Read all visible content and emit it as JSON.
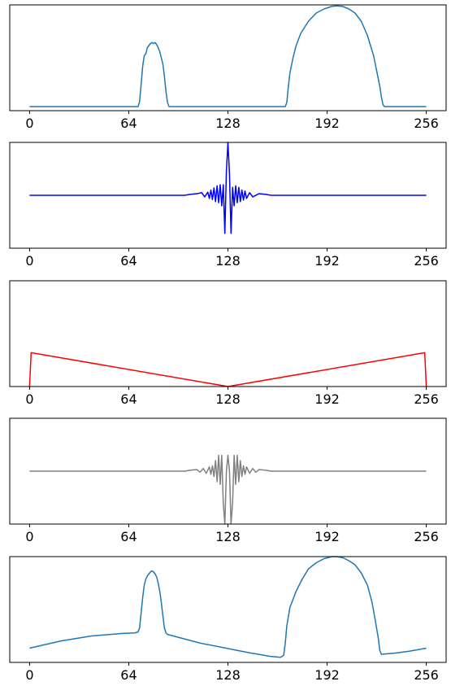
{
  "chart_data": [
    {
      "type": "line",
      "x_ticks": [
        0,
        64,
        128,
        192,
        256
      ],
      "xlim": [
        -12.8,
        268.8
      ],
      "ylim": [
        -0.04,
        1.0
      ],
      "grid": false,
      "color": "#1f77b4",
      "series": [
        {
          "points": [
            [
              0,
              0
            ],
            [
              70,
              0
            ],
            [
              71,
              0.05
            ],
            [
              72,
              0.22
            ],
            [
              73,
              0.4
            ],
            [
              74,
              0.5
            ],
            [
              75,
              0.52
            ],
            [
              76,
              0.58
            ],
            [
              77,
              0.6
            ],
            [
              78,
              0.62
            ],
            [
              79,
              0.63
            ],
            [
              80,
              0.62
            ],
            [
              81,
              0.63
            ],
            [
              82,
              0.61
            ],
            [
              83,
              0.58
            ],
            [
              84,
              0.54
            ],
            [
              85,
              0.48
            ],
            [
              86,
              0.42
            ],
            [
              87,
              0.3
            ],
            [
              88,
              0.15
            ],
            [
              89,
              0.04
            ],
            [
              90,
              0
            ],
            [
              165,
              0
            ],
            [
              166,
              0.04
            ],
            [
              167,
              0.2
            ],
            [
              168,
              0.33
            ],
            [
              170,
              0.48
            ],
            [
              172,
              0.6
            ],
            [
              175,
              0.72
            ],
            [
              180,
              0.84
            ],
            [
              185,
              0.92
            ],
            [
              190,
              0.96
            ],
            [
              195,
              0.985
            ],
            [
              198,
              0.99
            ],
            [
              202,
              0.985
            ],
            [
              206,
              0.96
            ],
            [
              210,
              0.92
            ],
            [
              214,
              0.84
            ],
            [
              218,
              0.7
            ],
            [
              222,
              0.5
            ],
            [
              224,
              0.35
            ],
            [
              226,
              0.2
            ],
            [
              227,
              0.1
            ],
            [
              228,
              0.02
            ],
            [
              229,
              0
            ],
            [
              256,
              0
            ]
          ]
        }
      ]
    },
    {
      "type": "line",
      "x_ticks": [
        0,
        64,
        128,
        192,
        256
      ],
      "xlim": [
        -12.8,
        268.8
      ],
      "ylim": [
        -1.0,
        1.0
      ],
      "grid": false,
      "color": "#0000ff",
      "series": [
        {
          "points": [
            [
              0,
              0
            ],
            [
              100,
              0
            ],
            [
              104,
              0.02
            ],
            [
              108,
              0.03
            ],
            [
              111,
              0.05
            ],
            [
              113,
              -0.03
            ],
            [
              115,
              0.06
            ],
            [
              116,
              -0.06
            ],
            [
              117,
              0.1
            ],
            [
              118,
              -0.08
            ],
            [
              119,
              0.14
            ],
            [
              120,
              -0.12
            ],
            [
              121,
              0.18
            ],
            [
              122,
              -0.14
            ],
            [
              123,
              0.2
            ],
            [
              124,
              -0.2
            ],
            [
              125,
              0.2
            ],
            [
              126,
              -0.72
            ],
            [
              127,
              0.45
            ],
            [
              128,
              1.0
            ],
            [
              129,
              0.4
            ],
            [
              130,
              -0.72
            ],
            [
              131,
              0.15
            ],
            [
              132,
              -0.2
            ],
            [
              133,
              0.18
            ],
            [
              134,
              -0.14
            ],
            [
              135,
              0.15
            ],
            [
              136,
              -0.12
            ],
            [
              137,
              0.1
            ],
            [
              138,
              -0.09
            ],
            [
              139,
              0.08
            ],
            [
              140,
              -0.06
            ],
            [
              142,
              0.05
            ],
            [
              144,
              -0.03
            ],
            [
              148,
              0.03
            ],
            [
              152,
              0.02
            ],
            [
              156,
              0
            ],
            [
              256,
              0
            ]
          ]
        }
      ]
    },
    {
      "type": "line",
      "x_ticks": [
        0,
        64,
        128,
        192,
        256
      ],
      "xlim": [
        -12.8,
        268.8
      ],
      "ylim": [
        0,
        1.0
      ],
      "grid": false,
      "color": "#ff0000",
      "series": [
        {
          "points": [
            [
              0,
              0
            ],
            [
              1,
              0.32
            ],
            [
              128,
              0
            ],
            [
              255,
              0.32
            ],
            [
              256,
              0
            ]
          ]
        }
      ]
    },
    {
      "type": "line",
      "x_ticks": [
        0,
        64,
        128,
        192,
        256
      ],
      "xlim": [
        -12.8,
        268.8
      ],
      "ylim": [
        -1.0,
        1.0
      ],
      "grid": false,
      "color": "#808080",
      "series": [
        {
          "points": [
            [
              0,
              0
            ],
            [
              100,
              0
            ],
            [
              104,
              0.02
            ],
            [
              108,
              0.03
            ],
            [
              110,
              -0.02
            ],
            [
              112,
              0.05
            ],
            [
              114,
              -0.04
            ],
            [
              116,
              0.08
            ],
            [
              117,
              -0.06
            ],
            [
              118,
              0.1
            ],
            [
              119,
              -0.1
            ],
            [
              120,
              0.2
            ],
            [
              121,
              -0.2
            ],
            [
              122,
              0.3
            ],
            [
              123,
              -0.25
            ],
            [
              124,
              0.3
            ],
            [
              125,
              -0.6
            ],
            [
              126,
              -1.0
            ],
            [
              127,
              0
            ],
            [
              128,
              0.3
            ],
            [
              129,
              0
            ],
            [
              130,
              -1.0
            ],
            [
              131,
              -0.6
            ],
            [
              132,
              0.3
            ],
            [
              133,
              -0.25
            ],
            [
              134,
              0.3
            ],
            [
              135,
              -0.2
            ],
            [
              136,
              0.2
            ],
            [
              137,
              -0.1
            ],
            [
              138,
              0.1
            ],
            [
              139,
              -0.06
            ],
            [
              140,
              0.08
            ],
            [
              142,
              -0.04
            ],
            [
              144,
              0.05
            ],
            [
              146,
              -0.02
            ],
            [
              148,
              0.03
            ],
            [
              152,
              0.02
            ],
            [
              156,
              0
            ],
            [
              256,
              0
            ]
          ]
        }
      ]
    },
    {
      "type": "line",
      "x_ticks": [
        0,
        64,
        128,
        192,
        256
      ],
      "xlim": [
        -12.8,
        268.8
      ],
      "ylim": [
        -0.04,
        1.0
      ],
      "grid": false,
      "color": "#1f77b4",
      "series": [
        {
          "points": [
            [
              0,
              0.1
            ],
            [
              20,
              0.17
            ],
            [
              40,
              0.22
            ],
            [
              60,
              0.245
            ],
            [
              68,
              0.25
            ],
            [
              70,
              0.26
            ],
            [
              71,
              0.3
            ],
            [
              72,
              0.45
            ],
            [
              73,
              0.6
            ],
            [
              74,
              0.72
            ],
            [
              75,
              0.78
            ],
            [
              76,
              0.81
            ],
            [
              77,
              0.83
            ],
            [
              78,
              0.85
            ],
            [
              79,
              0.86
            ],
            [
              80,
              0.85
            ],
            [
              81,
              0.83
            ],
            [
              82,
              0.8
            ],
            [
              83,
              0.74
            ],
            [
              84,
              0.66
            ],
            [
              85,
              0.55
            ],
            [
              86,
              0.42
            ],
            [
              87,
              0.3
            ],
            [
              88,
              0.25
            ],
            [
              89,
              0.235
            ],
            [
              110,
              0.15
            ],
            [
              140,
              0.06
            ],
            [
              155,
              0.02
            ],
            [
              162,
              0.01
            ],
            [
              164,
              0.03
            ],
            [
              165,
              0.15
            ],
            [
              166,
              0.32
            ],
            [
              168,
              0.5
            ],
            [
              172,
              0.66
            ],
            [
              176,
              0.78
            ],
            [
              180,
              0.88
            ],
            [
              185,
              0.94
            ],
            [
              190,
              0.98
            ],
            [
              195,
              1.0
            ],
            [
              198,
              1.0
            ],
            [
              202,
              0.99
            ],
            [
              206,
              0.96
            ],
            [
              210,
              0.92
            ],
            [
              214,
              0.84
            ],
            [
              218,
              0.72
            ],
            [
              221,
              0.55
            ],
            [
              223,
              0.38
            ],
            [
              225,
              0.2
            ],
            [
              226,
              0.08
            ],
            [
              227,
              0.04
            ],
            [
              235,
              0.05
            ],
            [
              245,
              0.07
            ],
            [
              256,
              0.1
            ]
          ]
        }
      ]
    }
  ]
}
